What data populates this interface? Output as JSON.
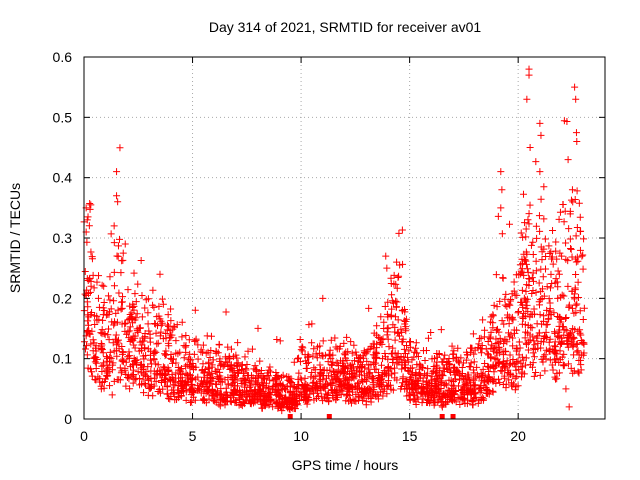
{
  "chart_data": {
    "type": "scatter",
    "title": "Day 314 of 2021, SRMTID for receiver av01",
    "xlabel": "GPS time / hours",
    "ylabel": "SRMTID / TECUs",
    "xlim": [
      0,
      24
    ],
    "ylim": [
      0,
      0.6
    ],
    "xticks": [
      0,
      5,
      10,
      15,
      20
    ],
    "yticks": [
      0,
      0.1,
      0.2,
      0.3,
      0.4,
      0.5,
      0.6
    ],
    "grid": true,
    "marker": "+",
    "color": "#ff0000",
    "profile": [
      {
        "x": 0.0,
        "y": 0.16
      },
      {
        "x": 0.2,
        "y": 0.22
      },
      {
        "x": 0.5,
        "y": 0.13
      },
      {
        "x": 1.0,
        "y": 0.11
      },
      {
        "x": 1.5,
        "y": 0.17
      },
      {
        "x": 2.0,
        "y": 0.13
      },
      {
        "x": 2.5,
        "y": 0.12
      },
      {
        "x": 3.0,
        "y": 0.1
      },
      {
        "x": 3.5,
        "y": 0.1
      },
      {
        "x": 4.0,
        "y": 0.09
      },
      {
        "x": 4.5,
        "y": 0.08
      },
      {
        "x": 5.0,
        "y": 0.07
      },
      {
        "x": 6.0,
        "y": 0.06
      },
      {
        "x": 7.0,
        "y": 0.06
      },
      {
        "x": 8.0,
        "y": 0.05
      },
      {
        "x": 9.0,
        "y": 0.04
      },
      {
        "x": 9.5,
        "y": 0.035
      },
      {
        "x": 10.0,
        "y": 0.06
      },
      {
        "x": 11.0,
        "y": 0.07
      },
      {
        "x": 12.0,
        "y": 0.07
      },
      {
        "x": 13.0,
        "y": 0.06
      },
      {
        "x": 13.8,
        "y": 0.09
      },
      {
        "x": 14.5,
        "y": 0.15
      },
      {
        "x": 15.0,
        "y": 0.07
      },
      {
        "x": 16.0,
        "y": 0.05
      },
      {
        "x": 17.0,
        "y": 0.06
      },
      {
        "x": 18.0,
        "y": 0.06
      },
      {
        "x": 18.6,
        "y": 0.08
      },
      {
        "x": 19.0,
        "y": 0.12
      },
      {
        "x": 20.0,
        "y": 0.13
      },
      {
        "x": 20.5,
        "y": 0.2
      },
      {
        "x": 21.0,
        "y": 0.18
      },
      {
        "x": 21.5,
        "y": 0.16
      },
      {
        "x": 22.0,
        "y": 0.17
      },
      {
        "x": 22.5,
        "y": 0.2
      },
      {
        "x": 23.0,
        "y": 0.18
      }
    ],
    "outliers": [
      {
        "x": 0.1,
        "y": 0.35
      },
      {
        "x": 0.15,
        "y": 0.33
      },
      {
        "x": 0.1,
        "y": 0.31
      },
      {
        "x": 1.5,
        "y": 0.41
      },
      {
        "x": 1.5,
        "y": 0.37
      },
      {
        "x": 1.55,
        "y": 0.36
      },
      {
        "x": 1.9,
        "y": 0.29
      },
      {
        "x": 3.5,
        "y": 0.24
      },
      {
        "x": 11.0,
        "y": 0.2
      },
      {
        "x": 13.9,
        "y": 0.27
      },
      {
        "x": 13.95,
        "y": 0.25
      },
      {
        "x": 14.4,
        "y": 0.26
      },
      {
        "x": 19.2,
        "y": 0.41
      },
      {
        "x": 19.25,
        "y": 0.38
      },
      {
        "x": 19.2,
        "y": 0.35
      },
      {
        "x": 20.5,
        "y": 0.58
      },
      {
        "x": 20.5,
        "y": 0.57
      },
      {
        "x": 20.4,
        "y": 0.53
      },
      {
        "x": 20.55,
        "y": 0.45
      },
      {
        "x": 21.0,
        "y": 0.49
      },
      {
        "x": 21.05,
        "y": 0.47
      },
      {
        "x": 21.0,
        "y": 0.41
      },
      {
        "x": 22.3,
        "y": 0.43
      },
      {
        "x": 22.6,
        "y": 0.55
      },
      {
        "x": 22.65,
        "y": 0.53
      },
      {
        "x": 22.7,
        "y": 0.46
      },
      {
        "x": 22.5,
        "y": 0.38
      },
      {
        "x": 22.4,
        "y": 0.34
      },
      {
        "x": 22.35,
        "y": 0.02
      },
      {
        "x": 22.2,
        "y": 0.05
      },
      {
        "x": 0.8,
        "y": 0.05
      },
      {
        "x": 1.3,
        "y": 0.04
      }
    ],
    "zero_markers": [
      9.5,
      11.3,
      16.5,
      17.0
    ],
    "n_scatter": 2600,
    "seed": 314
  }
}
